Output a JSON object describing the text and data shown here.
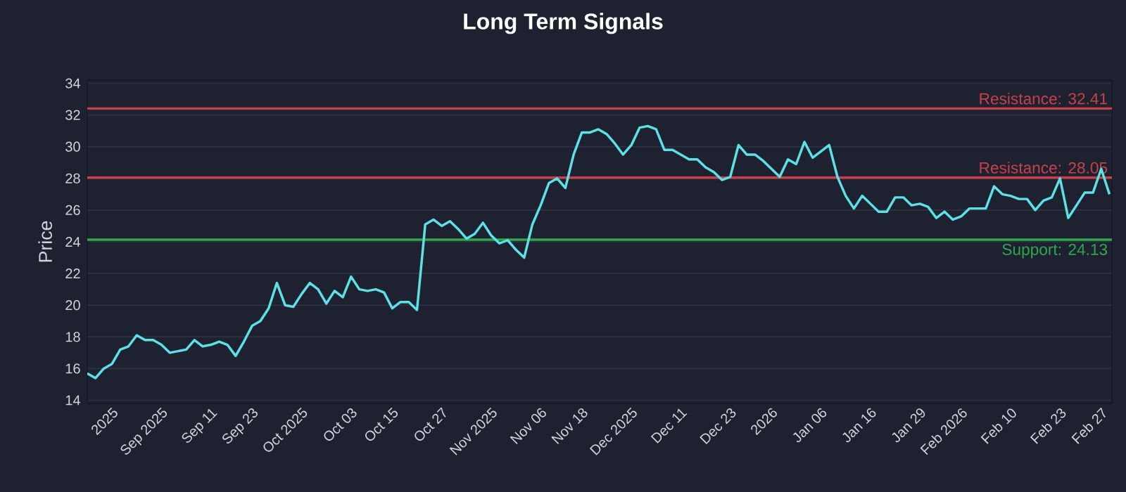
{
  "chart_data": {
    "type": "line",
    "title": "Long Term Signals",
    "ylabel": "Price",
    "categories": [
      null,
      null,
      null,
      "2025",
      null,
      null,
      null,
      null,
      null,
      "Sep 2025",
      null,
      null,
      null,
      null,
      null,
      "Sep 11",
      null,
      null,
      null,
      null,
      "Sep 23",
      null,
      null,
      null,
      null,
      null,
      "Oct 2025",
      null,
      null,
      null,
      null,
      null,
      "Oct 03",
      null,
      null,
      null,
      null,
      "Oct 15",
      null,
      null,
      null,
      null,
      null,
      "Oct 27",
      null,
      null,
      null,
      null,
      null,
      "Nov 2025",
      null,
      null,
      null,
      null,
      null,
      "Nov 06",
      null,
      null,
      null,
      null,
      "Nov 18",
      null,
      null,
      null,
      null,
      null,
      "Dec 2025",
      null,
      null,
      null,
      null,
      null,
      "Dec 11",
      null,
      null,
      null,
      null,
      null,
      "Dec 23",
      null,
      null,
      null,
      null,
      "2026",
      null,
      null,
      null,
      null,
      null,
      "Jan 06",
      null,
      null,
      null,
      null,
      null,
      "Jan 16",
      null,
      null,
      null,
      null,
      null,
      "Jan 29",
      null,
      null,
      null,
      null,
      "Feb 2026",
      null,
      null,
      null,
      null,
      null,
      "Feb 10",
      null,
      null,
      null,
      null,
      null,
      "Feb 23",
      null,
      null,
      null,
      null,
      "Feb 27",
      null
    ],
    "series": [
      {
        "color": "#5ce1e6",
        "values": [
          15.7,
          15.4,
          16.0,
          16.3,
          17.2,
          17.4,
          18.1,
          17.8,
          17.8,
          17.5,
          17.0,
          17.1,
          17.2,
          17.8,
          17.4,
          17.5,
          17.7,
          17.5,
          16.8,
          17.7,
          18.7,
          19.0,
          19.8,
          21.4,
          20.0,
          19.9,
          20.7,
          21.4,
          21.0,
          20.1,
          20.9,
          20.5,
          21.8,
          21.0,
          20.9,
          21.0,
          20.8,
          19.8,
          20.2,
          20.2,
          19.7,
          25.1,
          25.4,
          25.0,
          25.3,
          24.8,
          24.2,
          24.5,
          25.2,
          24.4,
          23.9,
          24.1,
          23.5,
          23.0,
          25.1,
          26.3,
          27.7,
          28.0,
          27.4,
          29.5,
          30.9,
          30.9,
          31.1,
          30.8,
          30.2,
          29.5,
          30.1,
          31.2,
          31.3,
          31.1,
          29.8,
          29.8,
          29.5,
          29.2,
          29.2,
          28.7,
          28.4,
          27.9,
          28.1,
          30.1,
          29.5,
          29.5,
          29.1,
          28.6,
          28.1,
          29.2,
          28.9,
          30.3,
          29.3,
          29.7,
          30.1,
          28.1,
          26.9,
          26.1,
          26.9,
          26.4,
          25.9,
          25.9,
          26.8,
          26.8,
          26.3,
          26.4,
          26.2,
          25.5,
          25.9,
          25.4,
          25.6,
          26.1,
          26.1,
          26.1,
          27.5,
          27.0,
          26.9,
          26.7,
          26.7,
          26.0,
          26.6,
          26.8,
          28.0,
          25.5,
          26.3,
          27.1,
          27.1,
          28.6,
          27.0
        ]
      }
    ],
    "ylim": [
      13.8,
      34.2
    ],
    "yticks": [
      14,
      16,
      18,
      20,
      22,
      24,
      26,
      28,
      30,
      32,
      34
    ],
    "grid": "y",
    "ref_lines": [
      {
        "axis": "y",
        "value": 32.41,
        "label": "Resistance: 32.41",
        "color": "#c8414a"
      },
      {
        "axis": "y",
        "value": 28.05,
        "label": "Resistance: 28.05",
        "color": "#c8414a"
      },
      {
        "axis": "y",
        "value": 24.13,
        "label": "Support: 24.13",
        "color": "#2ea84f"
      }
    ]
  }
}
